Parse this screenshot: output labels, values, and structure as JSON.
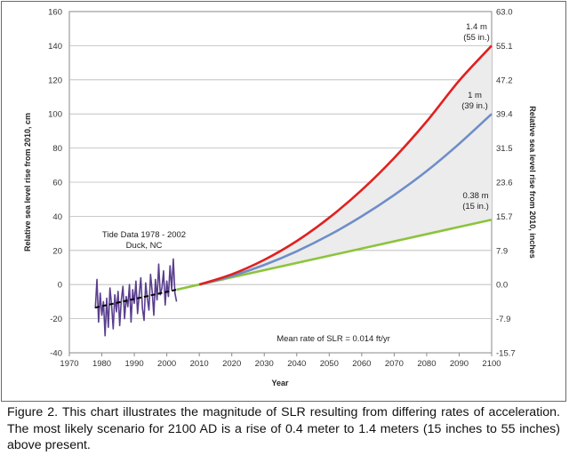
{
  "chart_data": {
    "type": "line",
    "xlabel": "Year",
    "ylabel_left": "Relative sea level rise from 2010, cm",
    "ylabel_right": "Relative sea level rise from 2010, inches",
    "xlim": [
      1970,
      2100
    ],
    "ylim": [
      -40,
      160
    ],
    "x_ticks": [
      "1970",
      "1980",
      "1990",
      "2000",
      "2010",
      "2020",
      "2030",
      "2040",
      "2050",
      "2060",
      "2070",
      "2080",
      "2090",
      "2100"
    ],
    "y_ticks_left": [
      "-40",
      "-20",
      "0",
      "20",
      "40",
      "60",
      "80",
      "100",
      "120",
      "140",
      "160"
    ],
    "y_ticks_right": [
      "-15.7",
      "-7.9",
      "0.0",
      "7.9",
      "15.7",
      "23.6",
      "31.5",
      "39.4",
      "47.2",
      "55.1",
      "63.0"
    ],
    "series": [
      {
        "name": "1.4 m scenario",
        "color": "#e02020",
        "x": [
          2010,
          2020,
          2030,
          2040,
          2050,
          2060,
          2070,
          2080,
          2090,
          2100
        ],
        "y": [
          0,
          6.0,
          14.5,
          25.5,
          39.2,
          55.4,
          74.2,
          95.6,
          119.5,
          140
        ]
      },
      {
        "name": "1 m scenario",
        "color": "#6e8ec8",
        "x": [
          2010,
          2020,
          2030,
          2040,
          2050,
          2060,
          2070,
          2080,
          2090,
          2100
        ],
        "y": [
          0,
          5.0,
          11.5,
          19.5,
          29.0,
          40.0,
          52.5,
          66.5,
          82.5,
          100
        ]
      },
      {
        "name": "0.38 m scenario",
        "color": "#8cc43c",
        "x": [
          2003,
          2010,
          2100
        ],
        "y": [
          -3,
          0,
          38
        ]
      },
      {
        "name": "Tide Data 1978 - 2002",
        "color": "#5a3f8e",
        "x": [
          1978,
          1978.5,
          1979,
          1979.5,
          1980,
          1980.5,
          1981,
          1981.5,
          1982,
          1982.5,
          1983,
          1983.5,
          1984,
          1984.5,
          1985,
          1985.5,
          1986,
          1986.5,
          1987,
          1987.5,
          1988,
          1988.5,
          1989,
          1989.5,
          1990,
          1990.5,
          1991,
          1991.5,
          1992,
          1992.5,
          1993,
          1993.5,
          1994,
          1994.5,
          1995,
          1995.5,
          1996,
          1996.5,
          1997,
          1997.5,
          1998,
          1998.5,
          1999,
          1999.5,
          2000,
          2000.5,
          2001,
          2001.5,
          2002,
          2002.5,
          2003
        ],
        "y": [
          -14,
          3,
          -22,
          -5,
          -18,
          -10,
          -30,
          -8,
          -25,
          -2,
          -12,
          -26,
          -6,
          -16,
          -4,
          -24,
          -9,
          -1,
          -20,
          -7,
          -13,
          0,
          -22,
          -3,
          -11,
          2,
          -17,
          -6,
          4,
          -14,
          -21,
          1,
          -8,
          -15,
          6,
          -4,
          -18,
          3,
          -9,
          12,
          -6,
          -2,
          8,
          -12,
          2,
          -7,
          11,
          -3,
          15,
          -5,
          -10
        ]
      },
      {
        "name": "Tide trend",
        "color": "#000000",
        "x": [
          1978,
          2003
        ],
        "y": [
          -13.5,
          -3
        ]
      }
    ],
    "annotations": {
      "red_label_line1": "1.4 m",
      "red_label_line2": "(55 in.)",
      "blue_label_line1": "1 m",
      "blue_label_line2": "(39 in.)",
      "green_label_line1": "0.38 m",
      "green_label_line2": "(15 in.)",
      "tide_label_line1": "Tide Data 1978 - 2002",
      "tide_label_line2": "Duck, NC",
      "rate_label": "Mean rate of SLR =  0.014 ft/yr"
    }
  },
  "caption": "Figure 2.  This chart illustrates the magnitude of SLR resulting from differing rates of acceleration. The most likely scenario for 2100 AD is a rise of 0.4 meter to 1.4 meters (15 inches to 55 inches) above present."
}
